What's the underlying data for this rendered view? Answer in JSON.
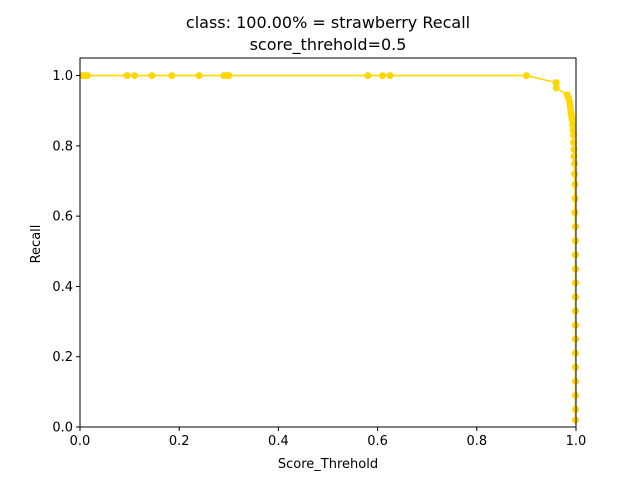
{
  "chart_data": {
    "type": "line",
    "title": "class: 100.00% = strawberry Recall",
    "subtitle": "score_threhold=0.5",
    "xlabel": "Score_Threhold",
    "ylabel": "Recall",
    "xlim": [
      0.0,
      1.0
    ],
    "ylim": [
      0.0,
      1.05
    ],
    "xticks": [
      "0.0",
      "0.2",
      "0.4",
      "0.6",
      "0.8",
      "1.0"
    ],
    "yticks": [
      "0.0",
      "0.2",
      "0.4",
      "0.6",
      "0.8",
      "1.0"
    ],
    "grid": false,
    "series_color": "#FFD700",
    "series": [
      {
        "x": [
          0.005,
          0.01,
          0.015,
          0.095,
          0.11,
          0.145,
          0.185,
          0.24,
          0.29,
          0.295,
          0.3,
          0.58,
          0.61,
          0.625,
          0.9,
          0.96,
          0.96,
          0.982,
          0.985,
          0.987,
          0.988,
          0.989,
          0.99,
          0.991,
          0.992,
          0.993,
          0.994,
          0.995,
          0.995,
          0.996,
          0.996,
          0.997,
          0.997,
          0.998,
          0.998,
          0.998,
          0.999,
          0.999,
          0.999,
          0.999,
          0.999,
          0.999,
          0.999,
          0.999,
          0.999,
          0.999,
          0.999,
          0.999,
          0.999,
          0.999,
          0.999
        ],
        "y": [
          1.0,
          1.0,
          1.0,
          1.0,
          1.0,
          1.0,
          1.0,
          1.0,
          1.0,
          1.0,
          1.0,
          1.0,
          1.0,
          1.0,
          1.0,
          0.98,
          0.965,
          0.945,
          0.935,
          0.925,
          0.915,
          0.905,
          0.895,
          0.885,
          0.875,
          0.86,
          0.845,
          0.83,
          0.81,
          0.79,
          0.77,
          0.75,
          0.72,
          0.69,
          0.65,
          0.61,
          0.57,
          0.53,
          0.49,
          0.45,
          0.41,
          0.37,
          0.33,
          0.29,
          0.25,
          0.21,
          0.17,
          0.13,
          0.09,
          0.05,
          0.02
        ]
      }
    ]
  }
}
